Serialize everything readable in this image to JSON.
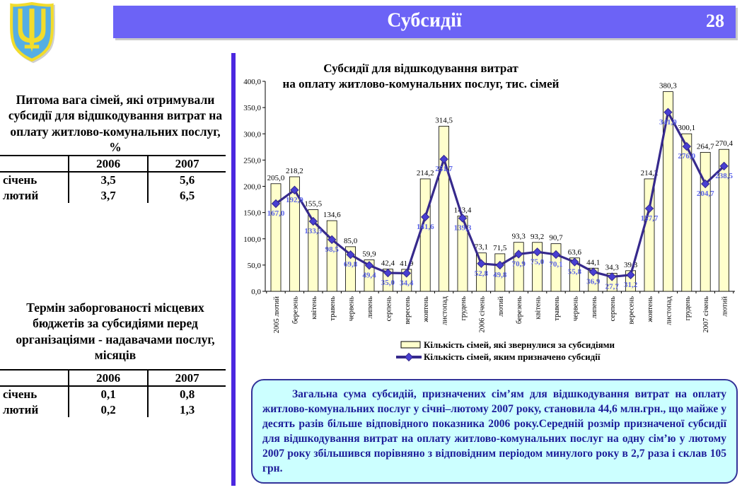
{
  "header": {
    "title": "Субсидії",
    "page_number": "28"
  },
  "left_panel": {
    "block1": {
      "title": "Питома вага сімей, які отримували субсидії для відшкодування витрат на оплату житлово-комунальних послуг, %",
      "table": {
        "columns": [
          "",
          "2006",
          "2007"
        ],
        "rows": [
          [
            "січень",
            "3,5",
            "5,6"
          ],
          [
            "лютий",
            "3,7",
            "6,5"
          ]
        ]
      }
    },
    "block2": {
      "title": "Термін заборгованості місцевих бюджетів за субсидіями перед організаціями - надавачами послуг, місяців",
      "table": {
        "columns": [
          "",
          "2006",
          "2007"
        ],
        "rows": [
          [
            "січень",
            "0,1",
            "0,8"
          ],
          [
            "лютий",
            "0,2",
            "1,3"
          ]
        ]
      }
    }
  },
  "chart_data": {
    "type": "bar+line",
    "title": "Субсидії для відшкодування витрат на оплату житлово-комунальних послуг, тис. сімей",
    "title_lines": [
      "Субсидії для відшкодування витрат",
      "на оплату житлово-комунальних послуг, тис. сімей"
    ],
    "categories": [
      "2005 лютий",
      "березень",
      "квітень",
      "травень",
      "червень",
      "липень",
      "серпень",
      "вересень",
      "жовтень",
      "листопад",
      "грудень",
      "2006 січень",
      "лютий",
      "березень",
      "квітень",
      "травень",
      "червень",
      "липень",
      "серпень",
      "вересень",
      "жовтень",
      "листопад",
      "грудень",
      "2007 січень",
      "лютий"
    ],
    "series": [
      {
        "name": "Кількість сімей, які звернулися за субсидіями",
        "type": "bar",
        "color": "#FFFFCC",
        "values": [
          205.0,
          218.2,
          155.5,
          134.6,
          85.0,
          59.9,
          42.4,
          41.9,
          214.2,
          314.5,
          143.4,
          73.1,
          71.5,
          93.3,
          93.2,
          90.7,
          63.6,
          44.1,
          34.3,
          39.3,
          214.2,
          380.3,
          300.1,
          264.7,
          270.4
        ]
      },
      {
        "name": "Кількість сімей, яким призначено субсидії",
        "type": "line",
        "color": "#36298C",
        "values": [
          167.0,
          192.9,
          133.3,
          98.5,
          69.8,
          49.4,
          35.0,
          34.4,
          141.6,
          251.7,
          139.3,
          52.8,
          49.8,
          70.9,
          75.0,
          70.1,
          55.8,
          36.9,
          27.7,
          31.2,
          157.7,
          341.0,
          276.0,
          204.7,
          238.5
        ]
      }
    ],
    "ylim": [
      0,
      400
    ],
    "ytick_step": 50,
    "decimal_separator": ",",
    "grid": false,
    "legend_position": "bottom"
  },
  "note_box": {
    "text": "Загальна сума субсидій, призначених сім’ям для відшкодування витрат на оплату житлово-комунальних послуг у січні–лютому 2007 року, становила 44,6 млн.грн., що майже у десять разів більше відповідного показника 2006 року.Середній розмір призначеної субсидії для відшкодування витрат на оплату житлово-комунальних послуг на одну сім’ю у лютому 2007 року збільшився порівняно з відповідним періодом минулого року в 2,7 раза і склав 105 грн."
  },
  "colors": {
    "header_bar": "#6C63F6",
    "divider": "#4B27E0",
    "bar_fill": "#FFFFCC",
    "line_color": "#36298C",
    "marker_color": "#483FD2",
    "line_label_color": "#5B64E8",
    "note_bg": "#CCFFFF",
    "note_border": "#333399",
    "note_text": "#1C1C99",
    "shield_fill": "#55AEE4",
    "trident_color": "#F2DC2C"
  }
}
